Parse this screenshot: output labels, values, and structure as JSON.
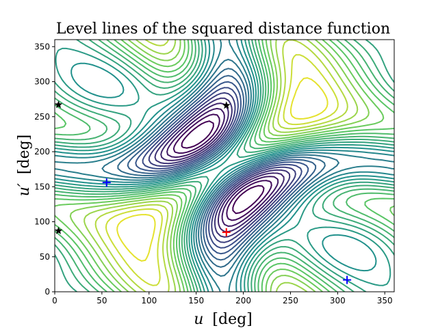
{
  "chart_data": {
    "type": "contour",
    "title": "Level lines of the squared distance function",
    "xlabel_var": "u",
    "xlabel_unit": "[deg]",
    "ylabel_var": "u′",
    "ylabel_unit": "[deg]",
    "xlim": [
      0,
      360
    ],
    "ylim": [
      0,
      360
    ],
    "xticks": [
      0,
      50,
      100,
      150,
      200,
      250,
      300,
      350
    ],
    "yticks": [
      0,
      50,
      100,
      150,
      200,
      250,
      300,
      350
    ],
    "grid": false,
    "colormap": [
      "#440154",
      "#3b528b",
      "#21918c",
      "#5ec962",
      "#fde725"
    ],
    "markers": [
      {
        "kind": "star",
        "color": "#000000",
        "u": 4,
        "v": 267
      },
      {
        "kind": "star",
        "color": "#000000",
        "u": 182,
        "v": 266
      },
      {
        "kind": "star",
        "color": "#000000",
        "u": 4,
        "v": 87
      },
      {
        "kind": "plus",
        "color": "#0000ff",
        "u": 55,
        "v": 156
      },
      {
        "kind": "plus",
        "color": "#0000ff",
        "u": 310,
        "v": 17
      },
      {
        "kind": "plus",
        "color": "#ff0000",
        "u": 182,
        "v": 85
      }
    ]
  }
}
